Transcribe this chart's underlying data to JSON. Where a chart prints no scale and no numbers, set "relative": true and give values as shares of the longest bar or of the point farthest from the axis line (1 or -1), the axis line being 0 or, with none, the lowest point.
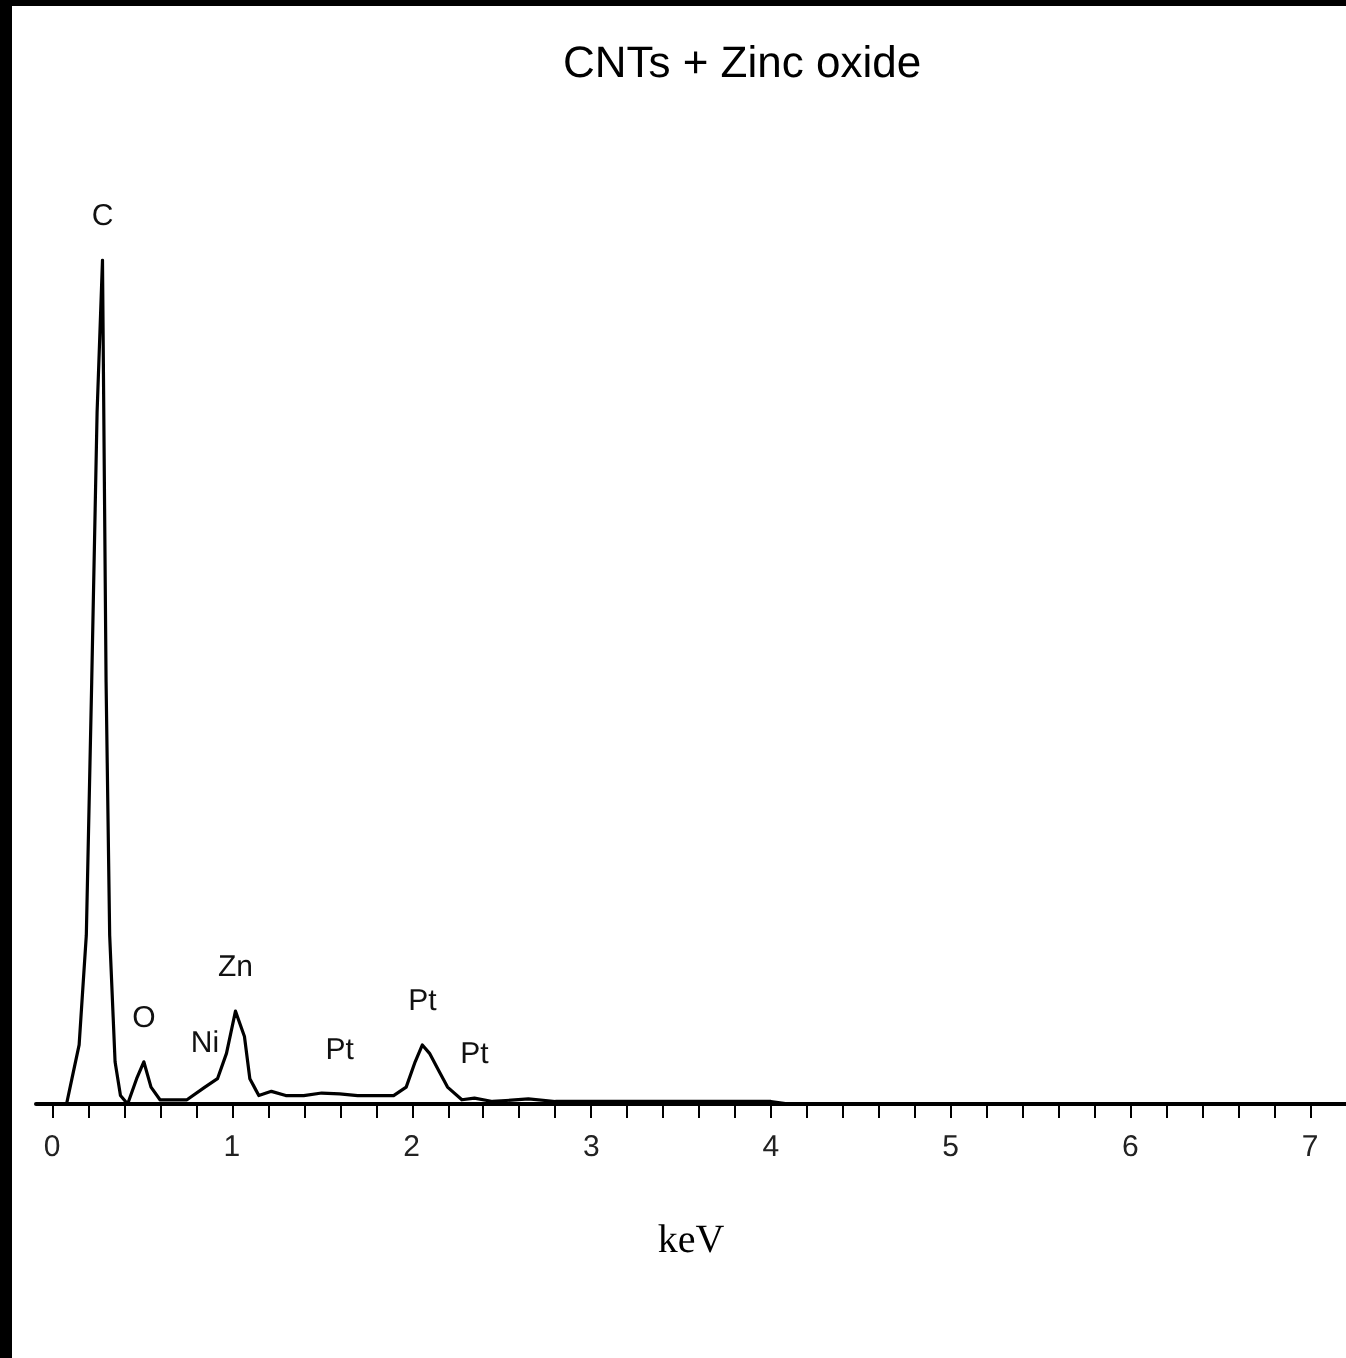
{
  "chart_data": {
    "type": "line",
    "title": "CNTs + Zinc oxide",
    "xlabel": "keV",
    "relative": true,
    "marker": "none",
    "grid": false,
    "xlim": [
      -0.09,
      7.2
    ],
    "xticks": [
      0,
      {
        "value": 0.2,
        "label": null
      },
      {
        "value": 0.4,
        "label": null
      },
      {
        "value": 0.6,
        "label": null
      },
      {
        "value": 0.8,
        "label": null
      },
      1,
      {
        "value": 1.2,
        "label": null
      },
      {
        "value": 1.4,
        "label": null
      },
      {
        "value": 1.6,
        "label": null
      },
      {
        "value": 1.8,
        "label": null
      },
      2,
      {
        "value": 2.2,
        "label": null
      },
      {
        "value": 2.4,
        "label": null
      },
      {
        "value": 2.6,
        "label": null
      },
      {
        "value": 2.8,
        "label": null
      },
      3,
      {
        "value": 3.2,
        "label": null
      },
      {
        "value": 3.4,
        "label": null
      },
      {
        "value": 3.6,
        "label": null
      },
      {
        "value": 3.8,
        "label": null
      },
      4,
      {
        "value": 4.2,
        "label": null
      },
      {
        "value": 4.4,
        "label": null
      },
      {
        "value": 4.6,
        "label": null
      },
      {
        "value": 4.8,
        "label": null
      },
      5,
      {
        "value": 5.2,
        "label": null
      },
      {
        "value": 5.4,
        "label": null
      },
      {
        "value": 5.6,
        "label": null
      },
      {
        "value": 5.8,
        "label": null
      },
      6,
      {
        "value": 6.2,
        "label": null
      },
      {
        "value": 6.4,
        "label": null
      },
      {
        "value": 6.6,
        "label": null
      },
      {
        "value": 6.8,
        "label": null
      },
      7
    ],
    "x": [
      0.08,
      0.11,
      0.15,
      0.19,
      0.22,
      0.25,
      0.28,
      0.3,
      0.32,
      0.35,
      0.38,
      0.42,
      0.47,
      0.51,
      0.55,
      0.6,
      0.75,
      0.85,
      0.92,
      0.97,
      1.02,
      1.07,
      1.1,
      1.15,
      1.22,
      1.3,
      1.4,
      1.5,
      1.6,
      1.7,
      1.8,
      1.9,
      1.97,
      2.02,
      2.06,
      2.1,
      2.15,
      2.2,
      2.28,
      2.35,
      2.45,
      2.65,
      2.8,
      3.2,
      3.6,
      4.0,
      4.1
    ],
    "series": [
      {
        "color": "#000000",
        "values": [
          0,
          0.03,
          0.07,
          0.2,
          0.5,
          0.82,
          1.0,
          0.5,
          0.2,
          0.05,
          0.01,
          0,
          0.03,
          0.05,
          0.02,
          0.005,
          0.005,
          0.02,
          0.03,
          0.06,
          0.11,
          0.08,
          0.03,
          0.01,
          0.015,
          0.01,
          0.01,
          0.013,
          0.012,
          0.01,
          0.01,
          0.01,
          0.02,
          0.05,
          0.07,
          0.06,
          0.04,
          0.02,
          0.005,
          0.007,
          0.003,
          0.006,
          0.003,
          0.003,
          0.003,
          0.003,
          0
        ]
      }
    ],
    "annotations": [
      {
        "text": "C",
        "x": 0.28,
        "y": 1.0
      },
      {
        "text": "O",
        "x": 0.51,
        "y": 0.05
      },
      {
        "text": "Ni",
        "x": 0.85,
        "y": 0.02
      },
      {
        "text": "Zn",
        "x": 1.02,
        "y": 0.11
      },
      {
        "text": "Pt",
        "x": 1.6,
        "y": 0.012
      },
      {
        "text": "Pt",
        "x": 2.06,
        "y": 0.07
      },
      {
        "text": "Pt",
        "x": 2.35,
        "y": 0.007
      }
    ]
  }
}
